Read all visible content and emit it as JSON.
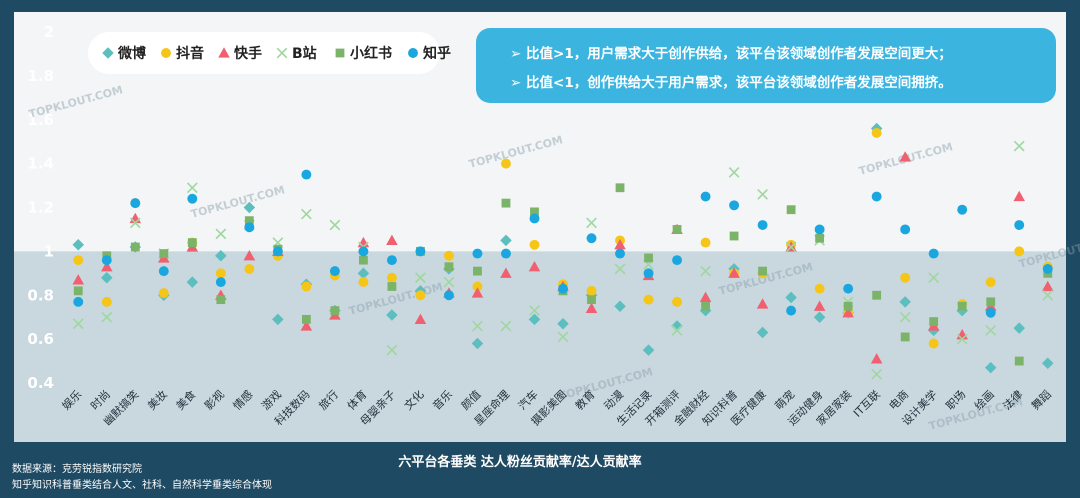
{
  "chart_data": {
    "type": "scatter",
    "title": "",
    "xlabel": "六平台各垂类 达人粉丝贡献率/达人贡献率",
    "ylabel": "",
    "ylim": [
      0.4,
      2
    ],
    "yticks": [
      "0.4",
      "0.6",
      "0.8",
      "1",
      "1.2",
      "1.4",
      "1.6",
      "1.8",
      "2"
    ],
    "grid": false,
    "legend_position": "top-left",
    "reference_line": 1,
    "categories": [
      "娱乐",
      "时尚",
      "幽默搞笑",
      "美妆",
      "美食",
      "影视",
      "情感",
      "游戏",
      "科技数码",
      "旅行",
      "体育",
      "母婴亲子",
      "文化",
      "音乐",
      "颜值",
      "星座命理",
      "汽车",
      "摄影美图",
      "教育",
      "动漫",
      "生活记录",
      "开箱测评",
      "金融财经",
      "知识科普",
      "医疗健康",
      "萌宠",
      "运动健身",
      "家居家装",
      "IT互联",
      "电商",
      "设计美学",
      "职场",
      "绘画",
      "法律",
      "舞蹈"
    ],
    "series": [
      {
        "name": "微博",
        "marker": "diamond",
        "color": "#5bbfbf",
        "values": [
          1.03,
          0.88,
          1.02,
          0.8,
          0.86,
          0.98,
          1.2,
          0.69,
          0.85,
          0.73,
          0.9,
          0.71,
          0.82,
          0.92,
          0.58,
          1.05,
          0.69,
          0.67,
          0.8,
          0.75,
          0.55,
          0.66,
          0.73,
          0.92,
          0.63,
          0.79,
          0.7,
          0.72,
          1.56,
          0.77,
          0.64,
          0.73,
          0.47,
          0.65,
          0.49
        ]
      },
      {
        "name": "抖音",
        "marker": "circle",
        "color": "#f5c518",
        "values": [
          0.96,
          0.77,
          1.22,
          0.81,
          1.04,
          0.9,
          0.92,
          0.98,
          0.84,
          0.89,
          0.86,
          0.88,
          0.8,
          0.98,
          0.84,
          1.4,
          1.03,
          0.85,
          0.82,
          1.05,
          0.78,
          0.77,
          1.04,
          0.9,
          0.9,
          1.03,
          0.83,
          0.72,
          1.54,
          0.88,
          0.58,
          0.76,
          0.86,
          1.0,
          0.93
        ]
      },
      {
        "name": "快手",
        "marker": "triangle",
        "color": "#f06070",
        "values": [
          0.87,
          0.93,
          1.15,
          0.97,
          1.02,
          0.8,
          0.98,
          1.0,
          0.66,
          0.71,
          1.04,
          1.05,
          0.69,
          0.81,
          0.81,
          0.9,
          0.93,
          0.84,
          0.74,
          1.03,
          0.89,
          1.1,
          0.79,
          0.9,
          0.76,
          1.02,
          0.75,
          0.72,
          0.51,
          1.43,
          0.66,
          0.62,
          0.75,
          1.25,
          0.84
        ]
      },
      {
        "name": "B站",
        "marker": "cross",
        "color": "#9ed89e",
        "values": [
          0.67,
          0.7,
          1.13,
          0.99,
          1.29,
          1.08,
          1.12,
          1.04,
          1.17,
          1.12,
          1.02,
          0.55,
          0.88,
          0.86,
          0.66,
          0.66,
          0.73,
          0.61,
          1.13,
          0.92,
          0.94,
          0.64,
          0.91,
          1.36,
          1.26,
          1.02,
          1.05,
          0.77,
          0.44,
          0.7,
          0.88,
          0.6,
          0.64,
          1.48,
          0.8
        ]
      },
      {
        "name": "小红书",
        "marker": "square",
        "color": "#7bb369",
        "values": [
          0.82,
          0.98,
          1.02,
          0.99,
          1.04,
          0.78,
          1.14,
          1.01,
          0.69,
          0.73,
          0.96,
          0.84,
          1.0,
          0.93,
          0.91,
          1.22,
          1.18,
          0.82,
          0.78,
          1.29,
          0.97,
          1.1,
          0.75,
          1.07,
          0.91,
          1.19,
          1.06,
          0.75,
          0.8,
          0.61,
          0.68,
          0.75,
          0.77,
          0.5,
          0.9
        ]
      },
      {
        "name": "知乎",
        "marker": "circle",
        "color": "#1aa7e0",
        "values": [
          0.77,
          0.96,
          1.22,
          0.91,
          1.24,
          0.86,
          1.11,
          1.0,
          1.35,
          0.91,
          1.0,
          0.96,
          1.0,
          0.8,
          0.99,
          0.99,
          1.15,
          0.83,
          1.06,
          0.99,
          0.9,
          0.96,
          1.25,
          1.21,
          1.12,
          0.73,
          1.1,
          0.83,
          1.25,
          1.1,
          0.99,
          1.19,
          0.72,
          1.12,
          0.92
        ]
      }
    ],
    "notes": [
      "➢ 比值>1，用户需求大于创作供给，该平台该领域创作者发展空间更大；",
      "➢ 比值<1，创作供给大于用户需求，该平台该领域创作者发展空间拥挤。"
    ],
    "source": [
      "数据来源：克劳锐指数研究院",
      "知乎知识科普垂类结合人文、社科、自然科学垂类综合体现"
    ],
    "watermark": "TOPKLOUT.COM"
  }
}
